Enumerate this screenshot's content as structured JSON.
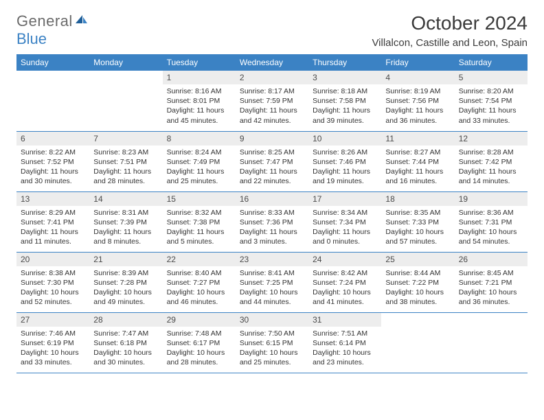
{
  "brand": {
    "part1": "General",
    "part2": "Blue"
  },
  "title": "October 2024",
  "location": "Villalcon, Castille and Leon, Spain",
  "colors": {
    "header_bg": "#3b82c4",
    "header_text": "#ffffff",
    "daynum_bg": "#ededed",
    "rule": "#3b82c4",
    "text": "#333333",
    "brand_gray": "#6a6a6a",
    "brand_blue": "#3b82c4"
  },
  "weekdays": [
    "Sunday",
    "Monday",
    "Tuesday",
    "Wednesday",
    "Thursday",
    "Friday",
    "Saturday"
  ],
  "weeks": [
    [
      null,
      null,
      {
        "n": "1",
        "sr": "Sunrise: 8:16 AM",
        "ss": "Sunset: 8:01 PM",
        "d1": "Daylight: 11 hours",
        "d2": "and 45 minutes."
      },
      {
        "n": "2",
        "sr": "Sunrise: 8:17 AM",
        "ss": "Sunset: 7:59 PM",
        "d1": "Daylight: 11 hours",
        "d2": "and 42 minutes."
      },
      {
        "n": "3",
        "sr": "Sunrise: 8:18 AM",
        "ss": "Sunset: 7:58 PM",
        "d1": "Daylight: 11 hours",
        "d2": "and 39 minutes."
      },
      {
        "n": "4",
        "sr": "Sunrise: 8:19 AM",
        "ss": "Sunset: 7:56 PM",
        "d1": "Daylight: 11 hours",
        "d2": "and 36 minutes."
      },
      {
        "n": "5",
        "sr": "Sunrise: 8:20 AM",
        "ss": "Sunset: 7:54 PM",
        "d1": "Daylight: 11 hours",
        "d2": "and 33 minutes."
      }
    ],
    [
      {
        "n": "6",
        "sr": "Sunrise: 8:22 AM",
        "ss": "Sunset: 7:52 PM",
        "d1": "Daylight: 11 hours",
        "d2": "and 30 minutes."
      },
      {
        "n": "7",
        "sr": "Sunrise: 8:23 AM",
        "ss": "Sunset: 7:51 PM",
        "d1": "Daylight: 11 hours",
        "d2": "and 28 minutes."
      },
      {
        "n": "8",
        "sr": "Sunrise: 8:24 AM",
        "ss": "Sunset: 7:49 PM",
        "d1": "Daylight: 11 hours",
        "d2": "and 25 minutes."
      },
      {
        "n": "9",
        "sr": "Sunrise: 8:25 AM",
        "ss": "Sunset: 7:47 PM",
        "d1": "Daylight: 11 hours",
        "d2": "and 22 minutes."
      },
      {
        "n": "10",
        "sr": "Sunrise: 8:26 AM",
        "ss": "Sunset: 7:46 PM",
        "d1": "Daylight: 11 hours",
        "d2": "and 19 minutes."
      },
      {
        "n": "11",
        "sr": "Sunrise: 8:27 AM",
        "ss": "Sunset: 7:44 PM",
        "d1": "Daylight: 11 hours",
        "d2": "and 16 minutes."
      },
      {
        "n": "12",
        "sr": "Sunrise: 8:28 AM",
        "ss": "Sunset: 7:42 PM",
        "d1": "Daylight: 11 hours",
        "d2": "and 14 minutes."
      }
    ],
    [
      {
        "n": "13",
        "sr": "Sunrise: 8:29 AM",
        "ss": "Sunset: 7:41 PM",
        "d1": "Daylight: 11 hours",
        "d2": "and 11 minutes."
      },
      {
        "n": "14",
        "sr": "Sunrise: 8:31 AM",
        "ss": "Sunset: 7:39 PM",
        "d1": "Daylight: 11 hours",
        "d2": "and 8 minutes."
      },
      {
        "n": "15",
        "sr": "Sunrise: 8:32 AM",
        "ss": "Sunset: 7:38 PM",
        "d1": "Daylight: 11 hours",
        "d2": "and 5 minutes."
      },
      {
        "n": "16",
        "sr": "Sunrise: 8:33 AM",
        "ss": "Sunset: 7:36 PM",
        "d1": "Daylight: 11 hours",
        "d2": "and 3 minutes."
      },
      {
        "n": "17",
        "sr": "Sunrise: 8:34 AM",
        "ss": "Sunset: 7:34 PM",
        "d1": "Daylight: 11 hours",
        "d2": "and 0 minutes."
      },
      {
        "n": "18",
        "sr": "Sunrise: 8:35 AM",
        "ss": "Sunset: 7:33 PM",
        "d1": "Daylight: 10 hours",
        "d2": "and 57 minutes."
      },
      {
        "n": "19",
        "sr": "Sunrise: 8:36 AM",
        "ss": "Sunset: 7:31 PM",
        "d1": "Daylight: 10 hours",
        "d2": "and 54 minutes."
      }
    ],
    [
      {
        "n": "20",
        "sr": "Sunrise: 8:38 AM",
        "ss": "Sunset: 7:30 PM",
        "d1": "Daylight: 10 hours",
        "d2": "and 52 minutes."
      },
      {
        "n": "21",
        "sr": "Sunrise: 8:39 AM",
        "ss": "Sunset: 7:28 PM",
        "d1": "Daylight: 10 hours",
        "d2": "and 49 minutes."
      },
      {
        "n": "22",
        "sr": "Sunrise: 8:40 AM",
        "ss": "Sunset: 7:27 PM",
        "d1": "Daylight: 10 hours",
        "d2": "and 46 minutes."
      },
      {
        "n": "23",
        "sr": "Sunrise: 8:41 AM",
        "ss": "Sunset: 7:25 PM",
        "d1": "Daylight: 10 hours",
        "d2": "and 44 minutes."
      },
      {
        "n": "24",
        "sr": "Sunrise: 8:42 AM",
        "ss": "Sunset: 7:24 PM",
        "d1": "Daylight: 10 hours",
        "d2": "and 41 minutes."
      },
      {
        "n": "25",
        "sr": "Sunrise: 8:44 AM",
        "ss": "Sunset: 7:22 PM",
        "d1": "Daylight: 10 hours",
        "d2": "and 38 minutes."
      },
      {
        "n": "26",
        "sr": "Sunrise: 8:45 AM",
        "ss": "Sunset: 7:21 PM",
        "d1": "Daylight: 10 hours",
        "d2": "and 36 minutes."
      }
    ],
    [
      {
        "n": "27",
        "sr": "Sunrise: 7:46 AM",
        "ss": "Sunset: 6:19 PM",
        "d1": "Daylight: 10 hours",
        "d2": "and 33 minutes."
      },
      {
        "n": "28",
        "sr": "Sunrise: 7:47 AM",
        "ss": "Sunset: 6:18 PM",
        "d1": "Daylight: 10 hours",
        "d2": "and 30 minutes."
      },
      {
        "n": "29",
        "sr": "Sunrise: 7:48 AM",
        "ss": "Sunset: 6:17 PM",
        "d1": "Daylight: 10 hours",
        "d2": "and 28 minutes."
      },
      {
        "n": "30",
        "sr": "Sunrise: 7:50 AM",
        "ss": "Sunset: 6:15 PM",
        "d1": "Daylight: 10 hours",
        "d2": "and 25 minutes."
      },
      {
        "n": "31",
        "sr": "Sunrise: 7:51 AM",
        "ss": "Sunset: 6:14 PM",
        "d1": "Daylight: 10 hours",
        "d2": "and 23 minutes."
      },
      null,
      null
    ]
  ]
}
